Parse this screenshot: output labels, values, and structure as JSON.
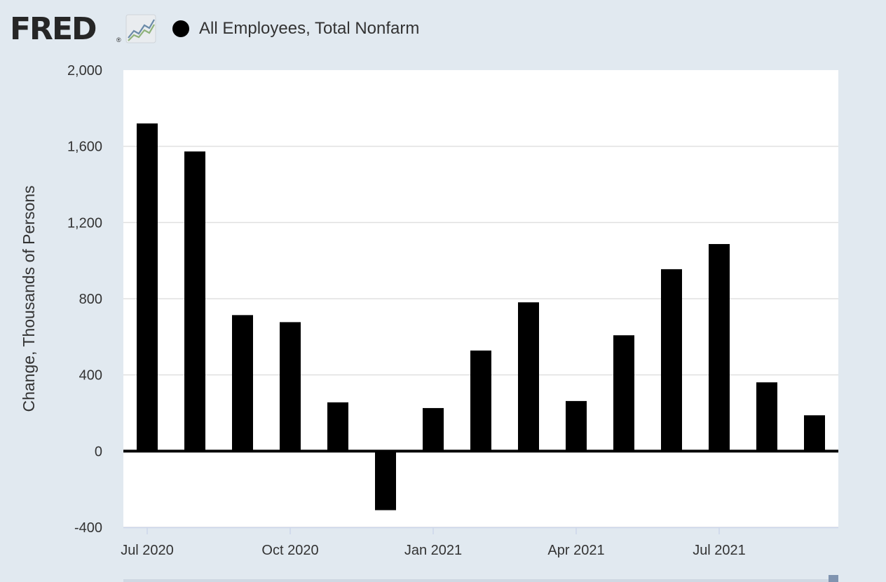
{
  "header": {
    "logo_text": "FRED",
    "logo_mark": "®",
    "logo_icon": "line-graph-icon"
  },
  "legend": {
    "marker_color": "#000000",
    "label": "All Employees, Total Nonfarm"
  },
  "colors": {
    "background": "#e1e9f0",
    "plot_background": "#ffffff",
    "bar": "#000000",
    "grid": "#e0e0e0"
  },
  "chart_data": {
    "type": "bar",
    "title": "",
    "xlabel": "",
    "ylabel": "Change, Thousands of Persons",
    "ylim": [
      -400,
      2000
    ],
    "yticks": [
      -400,
      0,
      400,
      800,
      1200,
      1600,
      2000
    ],
    "grid": true,
    "legend_position": "top-left",
    "categories": [
      "Jul 2020",
      "Aug 2020",
      "Sep 2020",
      "Oct 2020",
      "Nov 2020",
      "Dec 2020",
      "Jan 2021",
      "Feb 2021",
      "Mar 2021",
      "Apr 2021",
      "May 2021",
      "Jun 2021",
      "Jul 2021",
      "Aug 2021",
      "Sep 2021"
    ],
    "xtick_labels": [
      "Jul 2020",
      "Oct 2020",
      "Jan 2021",
      "Apr 2021",
      "Jul 2021"
    ],
    "series": [
      {
        "name": "All Employees, Total Nonfarm",
        "values": [
          1720,
          1573,
          714,
          677,
          256,
          -310,
          226,
          528,
          781,
          263,
          608,
          955,
          1087,
          361,
          188
        ]
      }
    ]
  }
}
